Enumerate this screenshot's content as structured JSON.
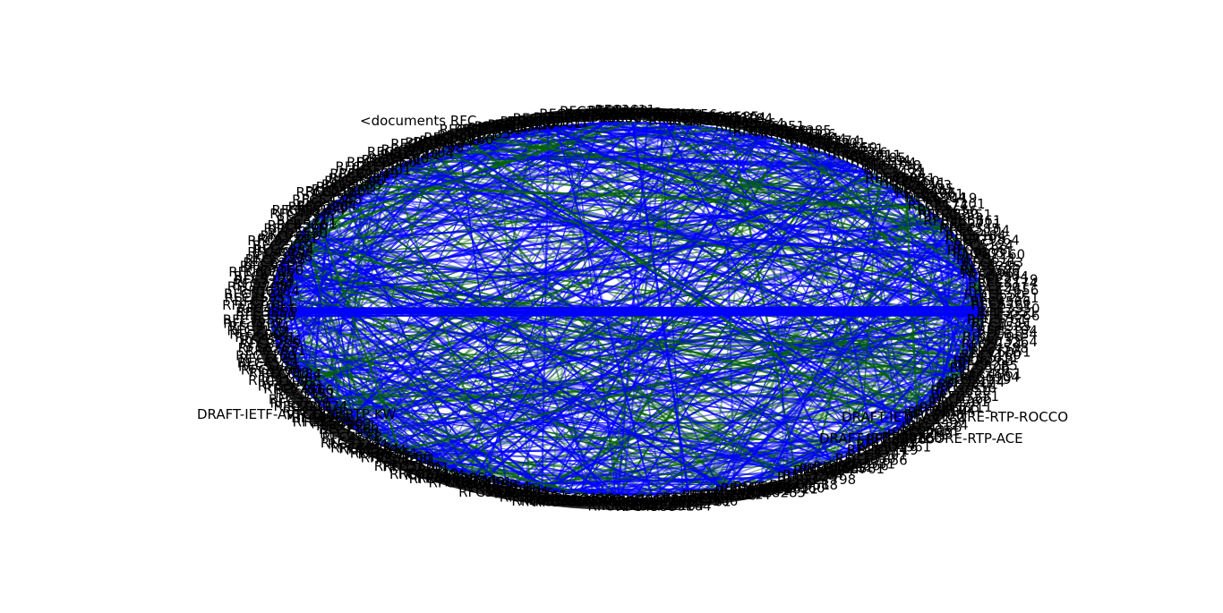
{
  "diagram": {
    "type": "circular network graph",
    "edge_colors": {
      "primary": "#0000ff",
      "secondary": "#006400"
    },
    "node_label_color": "#000000",
    "labels": {
      "documents": "<documents RFC",
      "kw": "DRAFT-IETF-AVTCORE-RTP-KW",
      "rocco": "DRAFT-IETF-AVTCORE-RTP-ROCCO",
      "ace": "DRAFT-IETF-AVTCORE-RTP-ACE"
    },
    "ring_tokens": [
      "RFC3550",
      "RFC3551",
      "RFC4566",
      "RFC5761",
      "RFC3711",
      "RFC4585",
      "RFC5104",
      "RFC6184",
      "RFC7798",
      "RFC3264",
      "RFC5124",
      "RFC4588",
      "RFC6051",
      "RFC7160",
      "RFC3611",
      "RFC6263",
      "RFC8285",
      "RFC5506",
      "RFC4961",
      "RFC6904",
      "RFC2119",
      "RFC8174",
      "RFC7201",
      "RFC7656"
    ]
  }
}
